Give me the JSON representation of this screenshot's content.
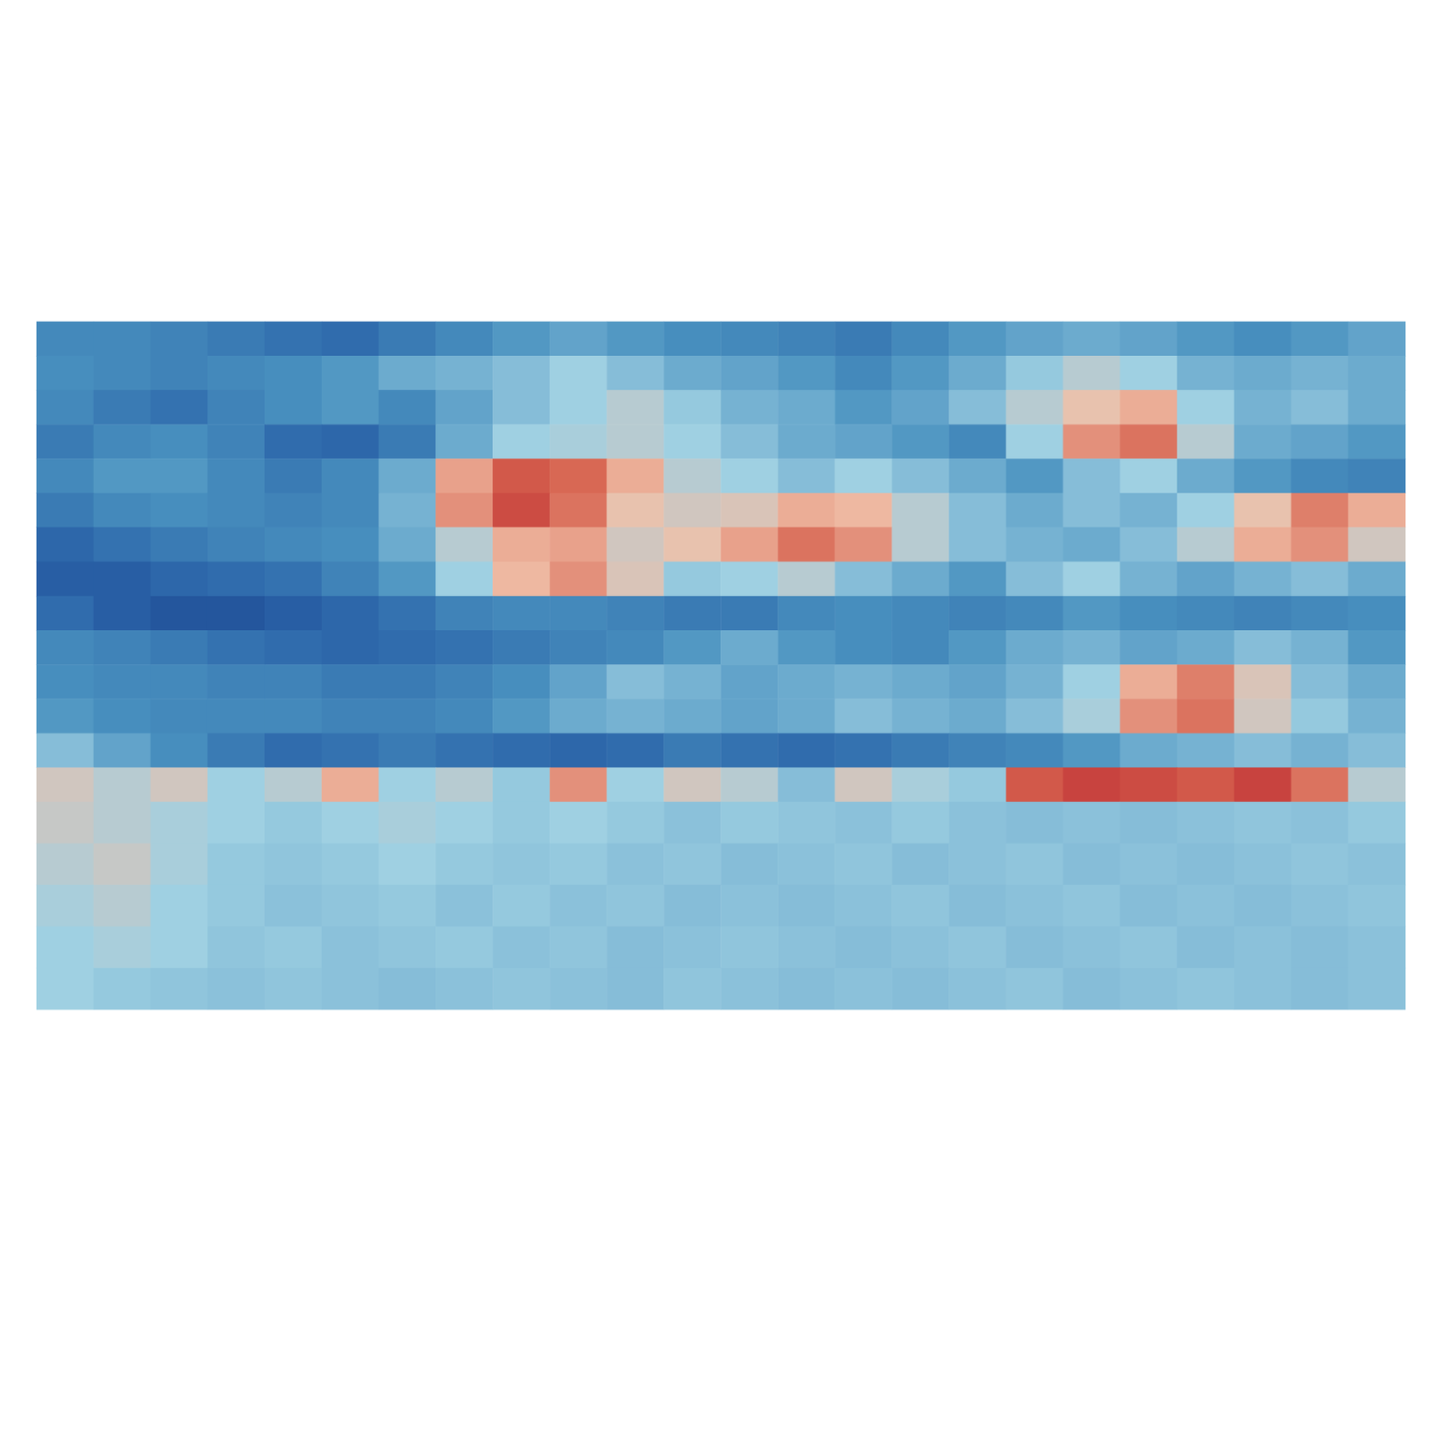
{
  "chart_data": {
    "type": "heatmap",
    "tick_labels": false,
    "color_range": [
      0,
      1
    ],
    "top_cells": [
      [
        0.3,
        0.3,
        0.28,
        0.25,
        0.22,
        0.2,
        0.25,
        0.3,
        0.35,
        0.38,
        0.35,
        0.32,
        0.3,
        0.28,
        0.25,
        0.3,
        0.35,
        0.38,
        0.4,
        0.38,
        0.35,
        0.32,
        0.35,
        0.38
      ],
      [
        0.32,
        0.3,
        0.28,
        0.3,
        0.32,
        0.35,
        0.4,
        0.42,
        0.45,
        0.5,
        0.45,
        0.4,
        0.38,
        0.35,
        0.3,
        0.35,
        0.4,
        0.48,
        0.55,
        0.5,
        0.42,
        0.4,
        0.42,
        0.4
      ],
      [
        0.3,
        0.25,
        0.22,
        0.28,
        0.32,
        0.35,
        0.3,
        0.38,
        0.45,
        0.5,
        0.55,
        0.48,
        0.42,
        0.4,
        0.35,
        0.38,
        0.45,
        0.55,
        0.65,
        0.7,
        0.5,
        0.42,
        0.45,
        0.4
      ],
      [
        0.25,
        0.3,
        0.32,
        0.28,
        0.2,
        0.18,
        0.25,
        0.4,
        0.5,
        0.52,
        0.55,
        0.5,
        0.45,
        0.4,
        0.38,
        0.35,
        0.3,
        0.5,
        0.75,
        0.8,
        0.55,
        0.4,
        0.38,
        0.35
      ],
      [
        0.3,
        0.35,
        0.35,
        0.3,
        0.25,
        0.3,
        0.4,
        0.72,
        0.85,
        0.82,
        0.7,
        0.55,
        0.5,
        0.45,
        0.5,
        0.45,
        0.4,
        0.35,
        0.45,
        0.5,
        0.4,
        0.35,
        0.3,
        0.28
      ],
      [
        0.25,
        0.3,
        0.32,
        0.3,
        0.28,
        0.3,
        0.42,
        0.75,
        0.88,
        0.8,
        0.65,
        0.6,
        0.62,
        0.7,
        0.68,
        0.55,
        0.45,
        0.4,
        0.45,
        0.42,
        0.5,
        0.65,
        0.78,
        0.7
      ],
      [
        0.18,
        0.22,
        0.25,
        0.28,
        0.3,
        0.32,
        0.4,
        0.55,
        0.7,
        0.72,
        0.6,
        0.65,
        0.72,
        0.8,
        0.75,
        0.55,
        0.45,
        0.42,
        0.4,
        0.45,
        0.55,
        0.7,
        0.75,
        0.6
      ],
      [
        0.15,
        0.15,
        0.18,
        0.2,
        0.22,
        0.28,
        0.35,
        0.5,
        0.68,
        0.75,
        0.62,
        0.48,
        0.5,
        0.55,
        0.45,
        0.4,
        0.35,
        0.45,
        0.5,
        0.42,
        0.38,
        0.42,
        0.45,
        0.4
      ],
      [
        0.2,
        0.15,
        0.12,
        0.12,
        0.15,
        0.18,
        0.22,
        0.28,
        0.3,
        0.3,
        0.28,
        0.25,
        0.25,
        0.3,
        0.32,
        0.3,
        0.28,
        0.3,
        0.35,
        0.32,
        0.3,
        0.28,
        0.3,
        0.32
      ],
      [
        0.3,
        0.28,
        0.25,
        0.22,
        0.2,
        0.18,
        0.2,
        0.22,
        0.25,
        0.28,
        0.3,
        0.35,
        0.4,
        0.35,
        0.32,
        0.3,
        0.35,
        0.4,
        0.42,
        0.38,
        0.4,
        0.45,
        0.42,
        0.35
      ],
      [
        0.32,
        0.3,
        0.3,
        0.28,
        0.28,
        0.25,
        0.25,
        0.28,
        0.32,
        0.38,
        0.45,
        0.42,
        0.38,
        0.4,
        0.42,
        0.4,
        0.38,
        0.42,
        0.5,
        0.7,
        0.78,
        0.62,
        0.45,
        0.4
      ],
      [
        0.35,
        0.32,
        0.3,
        0.3,
        0.3,
        0.28,
        0.28,
        0.3,
        0.35,
        0.4,
        0.42,
        0.4,
        0.38,
        0.4,
        0.45,
        0.42,
        0.4,
        0.45,
        0.52,
        0.75,
        0.8,
        0.6,
        0.48,
        0.42
      ],
      [
        0.45,
        0.38,
        0.32,
        0.25,
        0.2,
        0.22,
        0.25,
        0.22,
        0.2,
        0.18,
        0.2,
        0.25,
        0.22,
        0.2,
        0.22,
        0.25,
        0.28,
        0.3,
        0.35,
        0.4,
        0.42,
        0.45,
        0.42,
        0.45
      ],
      [
        0.6,
        0.55,
        0.6,
        0.5,
        0.55,
        0.7,
        0.5,
        0.55,
        0.48,
        0.75,
        0.5,
        0.6,
        0.55,
        0.45,
        0.6,
        0.52,
        0.48,
        0.85,
        0.9,
        0.88,
        0.85,
        0.9,
        0.8,
        0.55
      ]
    ],
    "front_cells": [
      [
        0.58,
        0.55,
        0.52,
        0.5,
        0.48,
        0.5,
        0.52,
        0.5,
        0.48,
        0.5,
        0.48,
        0.46,
        0.48,
        0.47,
        0.46,
        0.48,
        0.46,
        0.45,
        0.46,
        0.45,
        0.46,
        0.47,
        0.46,
        0.48
      ],
      [
        0.55,
        0.58,
        0.52,
        0.48,
        0.47,
        0.48,
        0.5,
        0.48,
        0.47,
        0.48,
        0.46,
        0.47,
        0.45,
        0.46,
        0.47,
        0.45,
        0.46,
        0.47,
        0.45,
        0.46,
        0.45,
        0.46,
        0.47,
        0.46
      ],
      [
        0.52,
        0.55,
        0.5,
        0.48,
        0.46,
        0.47,
        0.48,
        0.46,
        0.48,
        0.46,
        0.47,
        0.45,
        0.46,
        0.45,
        0.46,
        0.47,
        0.45,
        0.46,
        0.47,
        0.45,
        0.46,
        0.45,
        0.46,
        0.47
      ],
      [
        0.5,
        0.52,
        0.5,
        0.47,
        0.48,
        0.46,
        0.47,
        0.48,
        0.46,
        0.47,
        0.45,
        0.46,
        0.47,
        0.46,
        0.45,
        0.46,
        0.47,
        0.45,
        0.46,
        0.47,
        0.45,
        0.46,
        0.45,
        0.46
      ],
      [
        0.5,
        0.48,
        0.47,
        0.46,
        0.47,
        0.46,
        0.45,
        0.46,
        0.47,
        0.46,
        0.45,
        0.47,
        0.46,
        0.45,
        0.46,
        0.45,
        0.46,
        0.47,
        0.45,
        0.46,
        0.47,
        0.46,
        0.45,
        0.46
      ]
    ]
  }
}
